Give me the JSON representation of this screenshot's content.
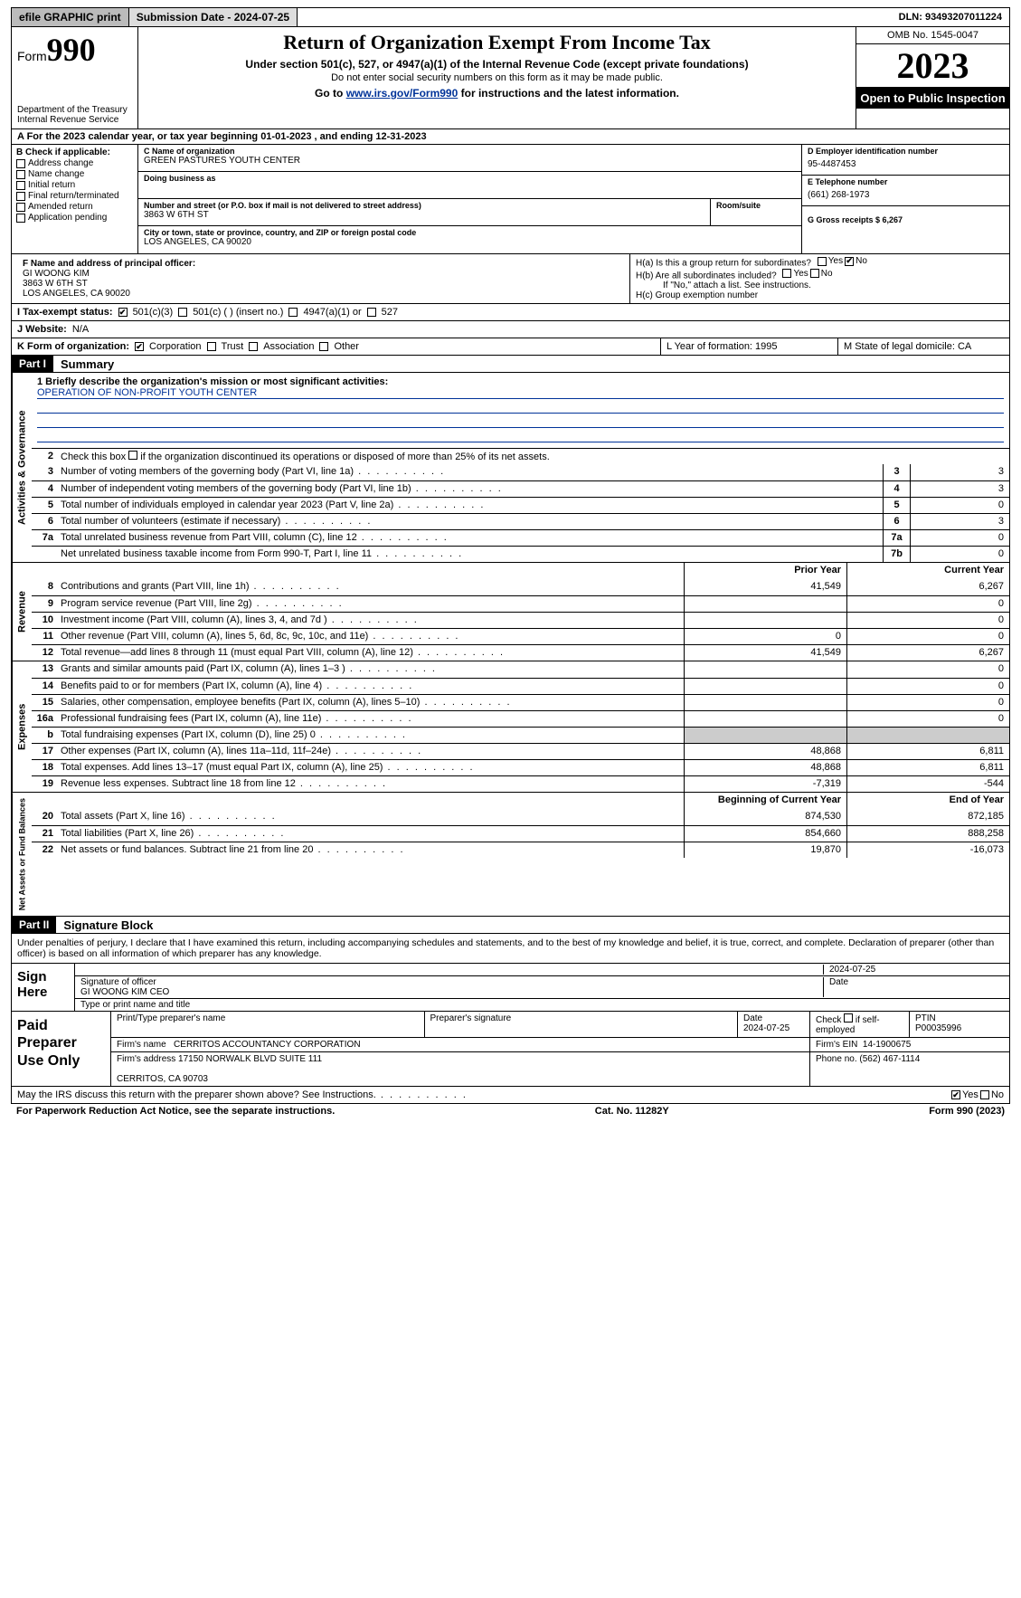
{
  "topbar": {
    "efile": "efile GRAPHIC print",
    "submission": "Submission Date - 2024-07-25",
    "dln": "DLN: 93493207011224"
  },
  "header": {
    "form_label": "Form",
    "form_no": "990",
    "dept": "Department of the Treasury\nInternal Revenue Service",
    "title": "Return of Organization Exempt From Income Tax",
    "sub1": "Under section 501(c), 527, or 4947(a)(1) of the Internal Revenue Code (except private foundations)",
    "sub2": "Do not enter social security numbers on this form as it may be made public.",
    "sub3_a": "Go to ",
    "sub3_link": "www.irs.gov/Form990",
    "sub3_b": " for instructions and the latest information.",
    "omb": "OMB No. 1545-0047",
    "year": "2023",
    "open": "Open to Public Inspection"
  },
  "rowA": "A For the 2023 calendar year, or tax year beginning 01-01-2023   , and ending 12-31-2023",
  "boxB": {
    "label": "B Check if applicable:",
    "items": [
      "Address change",
      "Name change",
      "Initial return",
      "Final return/terminated",
      "Amended return",
      "Application pending"
    ]
  },
  "boxC": {
    "name_lbl": "C Name of organization",
    "name": "GREEN PASTURES YOUTH CENTER",
    "dba_lbl": "Doing business as",
    "addr_lbl": "Number and street (or P.O. box if mail is not delivered to street address)",
    "addr": "3863 W 6TH ST",
    "room_lbl": "Room/suite",
    "city_lbl": "City or town, state or province, country, and ZIP or foreign postal code",
    "city": "LOS ANGELES, CA  90020"
  },
  "boxD": {
    "lbl": "D Employer identification number",
    "val": "95-4487453"
  },
  "boxE": {
    "lbl": "E Telephone number",
    "val": "(661) 268-1973"
  },
  "boxG": {
    "lbl": "G Gross receipts $ 6,267"
  },
  "boxF": {
    "lbl": "F  Name and address of principal officer:",
    "v": "GI WOONG KIM\n3863 W 6TH ST\nLOS ANGELES, CA  90020"
  },
  "boxH": {
    "a": "H(a)  Is this a group return for subordinates?",
    "b": "H(b)  Are all subordinates included?",
    "b2": "If \"No,\" attach a list. See instructions.",
    "c": "H(c)  Group exemption number"
  },
  "rowI": {
    "lbl": "I   Tax-exempt status:",
    "o1": "501(c)(3)",
    "o2": "501(c) (  ) (insert no.)",
    "o3": "4947(a)(1) or",
    "o4": "527"
  },
  "rowJ": {
    "lbl": "J   Website:",
    "val": "N/A"
  },
  "rowK": {
    "lbl": "K Form of organization:",
    "o1": "Corporation",
    "o2": "Trust",
    "o3": "Association",
    "o4": "Other"
  },
  "rowL": "L Year of formation: 1995",
  "rowM": "M State of legal domicile: CA",
  "part1": {
    "hdr": "Part I",
    "title": "Summary"
  },
  "sec_ag": "Activities & Governance",
  "sec_rev": "Revenue",
  "sec_exp": "Expenses",
  "sec_na": "Net Assets or Fund Balances",
  "line1": {
    "lbl": "1  Briefly describe the organization's mission or most significant activities:",
    "val": "OPERATION OF NON-PROFIT YOUTH CENTER"
  },
  "line2": "Check this box      if the organization discontinued its operations or disposed of more than 25% of its net assets.",
  "lines_gov": [
    {
      "n": "3",
      "t": "Number of voting members of the governing body (Part VI, line 1a)",
      "nb": "3",
      "v": "3"
    },
    {
      "n": "4",
      "t": "Number of independent voting members of the governing body (Part VI, line 1b)",
      "nb": "4",
      "v": "3"
    },
    {
      "n": "5",
      "t": "Total number of individuals employed in calendar year 2023 (Part V, line 2a)",
      "nb": "5",
      "v": "0"
    },
    {
      "n": "6",
      "t": "Total number of volunteers (estimate if necessary)",
      "nb": "6",
      "v": "3"
    },
    {
      "n": "7a",
      "t": "Total unrelated business revenue from Part VIII, column (C), line 12",
      "nb": "7a",
      "v": "0"
    },
    {
      "n": "",
      "t": "Net unrelated business taxable income from Form 990-T, Part I, line 11",
      "nb": "7b",
      "v": "0"
    }
  ],
  "col_prior": "Prior Year",
  "col_curr": "Current Year",
  "lines_rev": [
    {
      "n": "8",
      "t": "Contributions and grants (Part VIII, line 1h)",
      "p": "41,549",
      "c": "6,267"
    },
    {
      "n": "9",
      "t": "Program service revenue (Part VIII, line 2g)",
      "p": "",
      "c": "0"
    },
    {
      "n": "10",
      "t": "Investment income (Part VIII, column (A), lines 3, 4, and 7d )",
      "p": "",
      "c": "0"
    },
    {
      "n": "11",
      "t": "Other revenue (Part VIII, column (A), lines 5, 6d, 8c, 9c, 10c, and 11e)",
      "p": "0",
      "c": "0"
    },
    {
      "n": "12",
      "t": "Total revenue—add lines 8 through 11 (must equal Part VIII, column (A), line 12)",
      "p": "41,549",
      "c": "6,267"
    }
  ],
  "lines_exp": [
    {
      "n": "13",
      "t": "Grants and similar amounts paid (Part IX, column (A), lines 1–3 )",
      "p": "",
      "c": "0"
    },
    {
      "n": "14",
      "t": "Benefits paid to or for members (Part IX, column (A), line 4)",
      "p": "",
      "c": "0"
    },
    {
      "n": "15",
      "t": "Salaries, other compensation, employee benefits (Part IX, column (A), lines 5–10)",
      "p": "",
      "c": "0"
    },
    {
      "n": "16a",
      "t": "Professional fundraising fees (Part IX, column (A), line 11e)",
      "p": "",
      "c": "0"
    },
    {
      "n": "b",
      "t": "Total fundraising expenses (Part IX, column (D), line 25) 0",
      "p": "GRAY",
      "c": "GRAY"
    },
    {
      "n": "17",
      "t": "Other expenses (Part IX, column (A), lines 11a–11d, 11f–24e)",
      "p": "48,868",
      "c": "6,811"
    },
    {
      "n": "18",
      "t": "Total expenses. Add lines 13–17 (must equal Part IX, column (A), line 25)",
      "p": "48,868",
      "c": "6,811"
    },
    {
      "n": "19",
      "t": "Revenue less expenses. Subtract line 18 from line 12",
      "p": "-7,319",
      "c": "-544"
    }
  ],
  "col_boy": "Beginning of Current Year",
  "col_eoy": "End of Year",
  "lines_na": [
    {
      "n": "20",
      "t": "Total assets (Part X, line 16)",
      "p": "874,530",
      "c": "872,185"
    },
    {
      "n": "21",
      "t": "Total liabilities (Part X, line 26)",
      "p": "854,660",
      "c": "888,258"
    },
    {
      "n": "22",
      "t": "Net assets or fund balances. Subtract line 21 from line 20",
      "p": "19,870",
      "c": "-16,073"
    }
  ],
  "part2": {
    "hdr": "Part II",
    "title": "Signature Block"
  },
  "sig_decl": "Under penalties of perjury, I declare that I have examined this return, including accompanying schedules and statements, and to the best of my knowledge and belief, it is true, correct, and complete. Declaration of preparer (other than officer) is based on all information of which preparer has any knowledge.",
  "sign_here": "Sign Here",
  "sig_date": "2024-07-25",
  "sig_off_lbl": "Signature of officer",
  "sig_off": "GI WOONG KIM  CEO",
  "sig_type_lbl": "Type or print name and title",
  "sig_date_lbl": "Date",
  "paid_lbl": "Paid Preparer Use Only",
  "paid": {
    "h1": "Print/Type preparer's name",
    "h2": "Preparer's signature",
    "h3": "Date\n2024-07-25",
    "h4": "Check      if self-employed",
    "h5": "PTIN\nP00035996",
    "firm_lbl": "Firm's name",
    "firm": "CERRITOS ACCOUNTANCY CORPORATION",
    "ein_lbl": "Firm's EIN",
    "ein": "14-1900675",
    "addr_lbl": "Firm's address",
    "addr": "17150 NORWALK BLVD SUITE 111\n\nCERRITOS, CA  90703",
    "phone_lbl": "Phone no.",
    "phone": "(562) 467-1114"
  },
  "discuss": "May the IRS discuss this return with the preparer shown above? See Instructions.",
  "footer": {
    "l": "For Paperwork Reduction Act Notice, see the separate instructions.",
    "c": "Cat. No. 11282Y",
    "r": "Form 990 (2023)"
  }
}
